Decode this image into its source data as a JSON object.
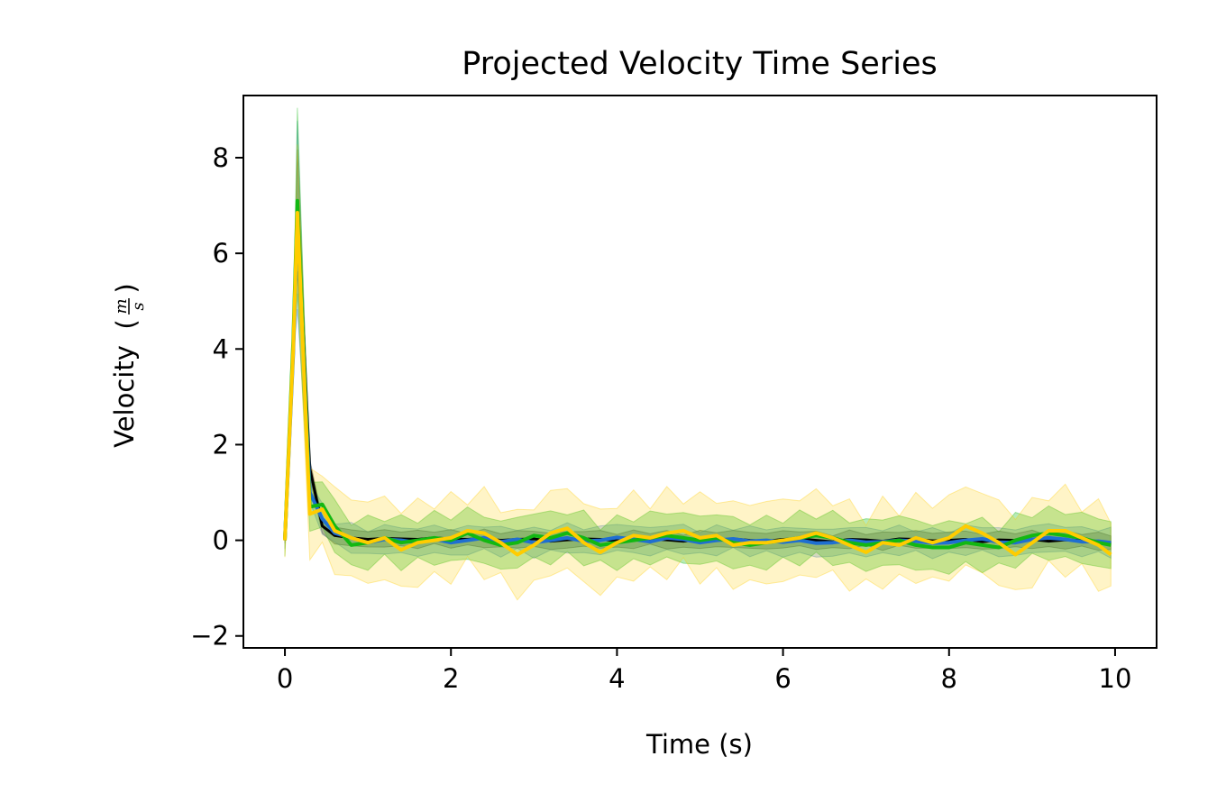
{
  "chart_data": {
    "type": "line",
    "title": "Projected Velocity Time Series",
    "xlabel": "Time (s)",
    "ylabel_text": "Velocity",
    "ylabel_unit_num": "m",
    "ylabel_unit_den": "s",
    "xlim": [
      -0.5,
      10.5
    ],
    "ylim": [
      -2.25,
      9.3
    ],
    "xticks": [
      0,
      2,
      4,
      6,
      8,
      10
    ],
    "xtick_labels": [
      "0",
      "2",
      "4",
      "6",
      "8",
      "10"
    ],
    "yticks": [
      -2,
      0,
      2,
      4,
      6,
      8
    ],
    "ytick_labels": [
      "−2",
      "0",
      "2",
      "4",
      "6",
      "8"
    ],
    "grid": false,
    "legend": "none",
    "colors": {
      "black": "#000000",
      "blue": "#1f6fd1",
      "green": "#12b812",
      "yellow": "#ffcc00"
    },
    "x": [
      0,
      0.1,
      0.15,
      0.3,
      0.45,
      0.6,
      0.8,
      1.0,
      1.2,
      1.4,
      1.6,
      1.8,
      2.0,
      2.2,
      2.4,
      2.6,
      2.8,
      3.0,
      3.2,
      3.4,
      3.6,
      3.8,
      4.0,
      4.2,
      4.4,
      4.6,
      4.8,
      5.0,
      5.2,
      5.4,
      5.6,
      5.8,
      6.0,
      6.2,
      6.4,
      6.6,
      6.8,
      7.0,
      7.2,
      7.4,
      7.6,
      7.8,
      8.0,
      8.2,
      8.4,
      8.6,
      8.8,
      9.0,
      9.2,
      9.4,
      9.6,
      9.8,
      9.95
    ],
    "series": [
      {
        "color": "black",
        "values": [
          0,
          4.0,
          6.9,
          1.5,
          0.3,
          0.1,
          0.05,
          0.02,
          0.04,
          0.03,
          0.02,
          0.05,
          0.03,
          0.02,
          0.04,
          0.0,
          0.02,
          0.03,
          -0.02,
          0.01,
          0.03,
          0.02,
          -0.01,
          0.02,
          0.03,
          0.01,
          -0.02,
          0.02,
          0.01,
          0.03,
          0.0,
          -0.02,
          0.02,
          0.03,
          0.0,
          -0.03,
          0.02,
          0.01,
          -0.02,
          0.03,
          0.02,
          -0.01,
          0.0,
          0.02,
          -0.03,
          0.01,
          0.0,
          0.02,
          -0.02,
          0.01,
          0.0,
          -0.02,
          -0.05
        ],
        "band": 0.15,
        "band_opacity": 0.25
      },
      {
        "color": "blue",
        "values": [
          0,
          3.9,
          6.8,
          1.0,
          0.45,
          0.15,
          0.05,
          -0.05,
          0.02,
          0.0,
          -0.05,
          0.03,
          -0.05,
          0.0,
          0.05,
          -0.03,
          0.02,
          -0.05,
          0.0,
          0.05,
          -0.02,
          0.0,
          0.06,
          0.02,
          -0.03,
          0.05,
          0.02,
          -0.05,
          0.0,
          0.03,
          -0.02,
          0.0,
          -0.04,
          0.0,
          -0.06,
          -0.05,
          0.0,
          -0.04,
          -0.03,
          0.0,
          -0.02,
          -0.06,
          -0.05,
          0.0,
          0.03,
          -0.04,
          -0.05,
          0.02,
          0.05,
          0.02,
          -0.03,
          -0.02,
          -0.05
        ],
        "band": 0.25,
        "band_opacity": 0.25
      },
      {
        "color": "green",
        "values": [
          0,
          4.2,
          7.1,
          0.7,
          0.75,
          0.3,
          -0.1,
          -0.05,
          0.05,
          -0.05,
          0.0,
          0.05,
          0.0,
          0.15,
          0.0,
          -0.1,
          -0.05,
          0.1,
          0.05,
          0.15,
          0.05,
          -0.1,
          -0.05,
          0.0,
          0.05,
          0.1,
          0.05,
          0.0,
          0.05,
          -0.05,
          -0.1,
          -0.05,
          0.0,
          0.05,
          0.1,
          0.05,
          -0.05,
          -0.1,
          -0.05,
          0.0,
          -0.1,
          -0.15,
          -0.15,
          -0.05,
          -0.1,
          -0.15,
          0.0,
          0.1,
          0.15,
          0.1,
          0.05,
          -0.05,
          -0.1
        ],
        "band": 0.45,
        "band_opacity": 0.3
      },
      {
        "color": "yellow",
        "values": [
          0,
          4.0,
          6.85,
          0.55,
          0.65,
          0.2,
          0.05,
          -0.05,
          0.05,
          -0.2,
          -0.05,
          0.0,
          0.05,
          0.2,
          0.15,
          -0.05,
          -0.3,
          -0.1,
          0.15,
          0.25,
          -0.05,
          -0.25,
          -0.05,
          0.1,
          0.05,
          0.15,
          0.2,
          0.05,
          0.1,
          -0.1,
          -0.05,
          -0.05,
          0.0,
          0.05,
          0.15,
          0.05,
          -0.1,
          -0.25,
          -0.05,
          -0.1,
          0.05,
          -0.05,
          0.05,
          0.3,
          0.15,
          -0.05,
          -0.3,
          -0.05,
          0.2,
          0.2,
          0.05,
          -0.1,
          -0.3
        ],
        "band": 0.75,
        "band_opacity": 0.22
      }
    ]
  }
}
